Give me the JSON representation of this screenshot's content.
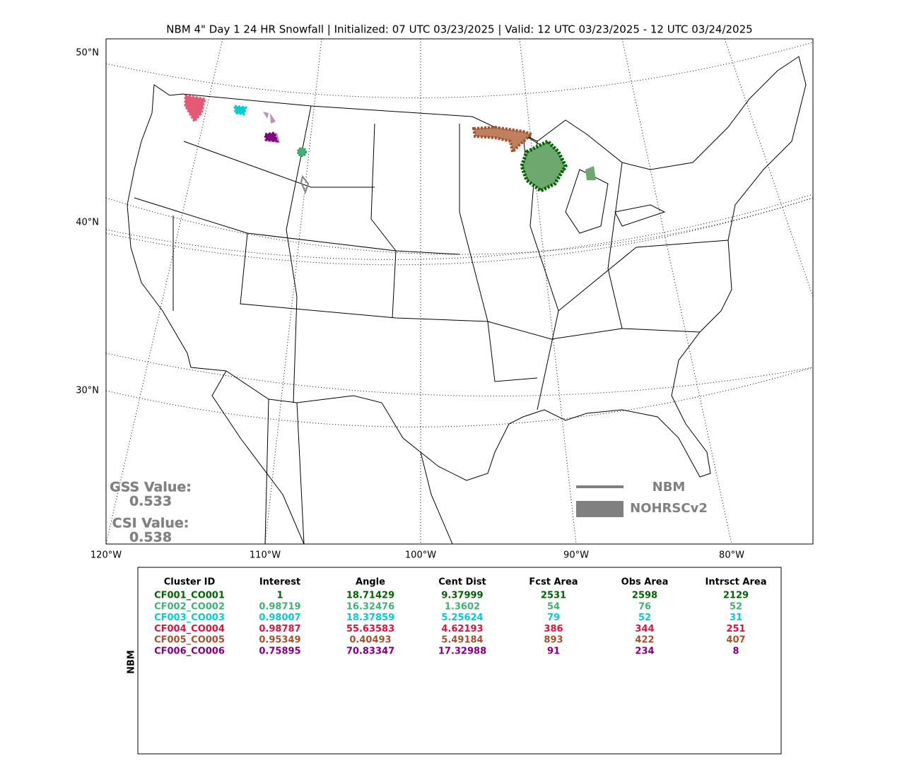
{
  "title": "NBM 4\" Day 1 24 HR Snowfall | Initialized: 07 UTC 03/23/2025 | Valid: 12 UTC 03/23/2025 - 12 UTC 03/24/2025",
  "map": {
    "lat_labels": [
      "50°N",
      "40°N",
      "30°N"
    ],
    "lon_labels": [
      "120°W",
      "110°W",
      "100°W",
      "90°W",
      "80°W"
    ],
    "gss_label": "GSS Value:",
    "gss_value": 0.533,
    "csi_label": "CSI Value:",
    "csi_value": 0.538,
    "legend": [
      "NBM",
      "NOHRSCv2"
    ]
  },
  "table": {
    "side_label": "NBM",
    "header": [
      "Cluster ID",
      "Interest",
      "Angle",
      "Cent Dist",
      "Fcst Area",
      "Obs Area",
      "Intrsct Area"
    ],
    "rows": [
      [
        "CF001_CO001",
        1,
        18.71429,
        9.37999,
        2531,
        2598,
        2129
      ],
      [
        "CF002_CO002",
        0.98719,
        16.32476,
        1.3602,
        54,
        76,
        52
      ],
      [
        "CF003_CO003",
        0.98007,
        18.37859,
        5.25624,
        79,
        52,
        31
      ],
      [
        "CF004_CO004",
        0.98787,
        55.63583,
        4.62193,
        386,
        344,
        251
      ],
      [
        "CF005_CO005",
        0.95349,
        0.40493,
        5.49184,
        893,
        422,
        407
      ],
      [
        "CF006_CO006",
        0.75895,
        70.83347,
        17.32988,
        91,
        234,
        8
      ]
    ],
    "row_colors": [
      "#006400",
      "#3cb371",
      "#00ced1",
      "#dc143c",
      "#a0522d",
      "#800080"
    ]
  }
}
